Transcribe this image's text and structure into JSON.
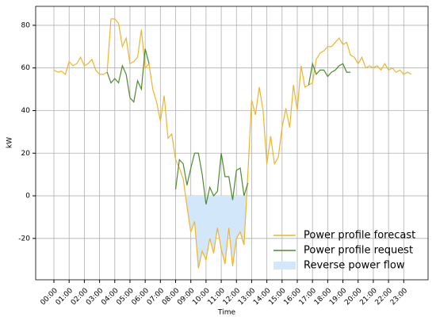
{
  "chart_data": {
    "type": "line",
    "xlabel": "Time",
    "ylabel": "kW",
    "x": [
      0,
      0.25,
      0.5,
      0.75,
      1,
      1.25,
      1.5,
      1.75,
      2,
      2.25,
      2.5,
      2.75,
      3,
      3.25,
      3.5,
      3.75,
      4,
      4.25,
      4.5,
      4.75,
      5,
      5.25,
      5.5,
      5.75,
      6,
      6.25,
      6.5,
      6.75,
      7,
      7.25,
      7.5,
      7.75,
      8,
      8.25,
      8.5,
      8.75,
      9,
      9.25,
      9.5,
      9.75,
      10,
      10.25,
      10.5,
      10.75,
      11,
      11.25,
      11.5,
      11.75,
      12,
      12.25,
      12.5,
      12.75,
      13,
      13.25,
      13.5,
      13.75,
      14,
      14.25,
      14.5,
      14.75,
      15,
      15.25,
      15.5,
      15.75,
      16,
      16.25,
      16.5,
      16.75,
      17,
      17.25,
      17.5,
      17.75,
      18,
      18.25,
      18.5,
      18.75,
      19,
      19.25,
      19.5,
      19.75,
      20,
      20.25,
      20.5,
      20.75,
      21,
      21.25,
      21.5,
      21.75,
      22,
      22.25,
      22.5,
      22.75,
      23,
      23.25,
      23.5
    ],
    "series": [
      {
        "name": "Power profile forecast",
        "color": "#f0b429",
        "values": [
          59,
          58,
          58.5,
          57,
          63,
          61,
          62,
          65,
          61,
          62,
          64,
          59,
          57,
          57,
          58,
          83,
          83,
          81,
          70,
          74,
          62,
          63,
          65,
          78,
          60,
          62,
          50,
          44,
          35,
          47,
          27,
          29,
          17,
          13,
          8,
          -5,
          -17,
          -12,
          -34,
          -26,
          -30,
          -20,
          -27,
          -15,
          -25,
          -32,
          -15,
          -33,
          -20,
          -17,
          -23,
          10,
          45,
          38,
          51,
          40,
          15,
          28,
          15,
          18,
          32,
          41,
          32,
          52,
          40,
          61,
          51,
          52,
          53,
          64,
          67,
          68,
          70,
          70,
          72,
          74,
          71,
          72,
          66,
          65,
          62,
          65,
          60,
          61,
          60,
          61,
          59,
          62,
          59,
          60,
          58,
          59,
          57,
          58,
          57
        ]
      },
      {
        "name": "Power profile request",
        "color": "#4e8a2e",
        "values": [
          null,
          null,
          null,
          null,
          null,
          null,
          null,
          null,
          null,
          null,
          null,
          null,
          null,
          null,
          58,
          53,
          55,
          53,
          61,
          57,
          46,
          44,
          54,
          50,
          69,
          62,
          null,
          null,
          null,
          null,
          null,
          null,
          3,
          17,
          15,
          5,
          13,
          20,
          20,
          10,
          -4,
          4,
          0,
          2,
          20,
          9,
          9,
          -2,
          12,
          13,
          0,
          6,
          null,
          null,
          null,
          null,
          null,
          null,
          null,
          null,
          null,
          null,
          null,
          null,
          null,
          null,
          null,
          52,
          62,
          57,
          59,
          59,
          56,
          58,
          59,
          61,
          62,
          58,
          58,
          null,
          null,
          null,
          null,
          null,
          null,
          null,
          null,
          null,
          null,
          null,
          null,
          null,
          null,
          null,
          null
        ]
      },
      {
        "name": "Reverse power flow",
        "color": "#d3e7fa",
        "kind": "area"
      }
    ],
    "xlim": [
      -1.2,
      24.6
    ],
    "ylim": [
      -39.4,
      88.9
    ],
    "xticks": [
      {
        "value": 0,
        "label": "00:00"
      },
      {
        "value": 1,
        "label": "01:00"
      },
      {
        "value": 2,
        "label": "02:00"
      },
      {
        "value": 3,
        "label": "03:00"
      },
      {
        "value": 4,
        "label": "04:00"
      },
      {
        "value": 5,
        "label": "05:00"
      },
      {
        "value": 6,
        "label": "06:00"
      },
      {
        "value": 7,
        "label": "07:00"
      },
      {
        "value": 8,
        "label": "08:00"
      },
      {
        "value": 9,
        "label": "09:00"
      },
      {
        "value": 10,
        "label": "10:00"
      },
      {
        "value": 11,
        "label": "11:00"
      },
      {
        "value": 12,
        "label": "12:00"
      },
      {
        "value": 13,
        "label": "13:00"
      },
      {
        "value": 14,
        "label": "14:00"
      },
      {
        "value": 15,
        "label": "15:00"
      },
      {
        "value": 16,
        "label": "16:00"
      },
      {
        "value": 17,
        "label": "17:00"
      },
      {
        "value": 18,
        "label": "18:00"
      },
      {
        "value": 19,
        "label": "19:00"
      },
      {
        "value": 20,
        "label": "20:00"
      },
      {
        "value": 21,
        "label": "21:00"
      },
      {
        "value": 22,
        "label": "22:00"
      },
      {
        "value": 23,
        "label": "23:00"
      }
    ],
    "yticks": [
      -20,
      0,
      20,
      40,
      60,
      80
    ],
    "grid": true,
    "legend": "lower right"
  }
}
